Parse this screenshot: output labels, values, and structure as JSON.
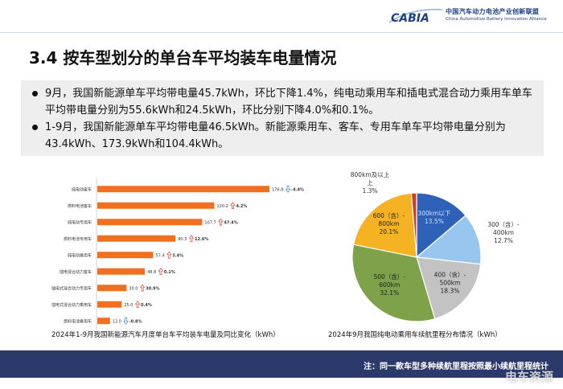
{
  "header": {
    "logo_text_cn": "中国汽车动力电池产业创新联盟",
    "logo_text_en": "China Automotive Battery Innovation Alliance",
    "logo_mark": "CABIA"
  },
  "title": "3.4 按车型划分的单台车平均装车电量情况",
  "bullets": [
    "9月，我国新能源单车平均带电量45.7kWh，环比下降1.4%，纯电动乘用车和插电式混合动力乘用车单车平均带电量分别为55.6kWh和24.5kWh，环比分别下降4.0%和0.1%。",
    "1-9月，我国新能源单车平均带电量46.5kWh。新能源乘用车、客车、专用车单车平均带电量分别为43.4kWh、173.9kWh和104.4kWh。"
  ],
  "colors": {
    "bar": "#f0701f",
    "up": "#e8432b",
    "down": "#2f8fd8",
    "footer": "#2b3a6b",
    "pie": [
      "#2e62b8",
      "#98c6ef",
      "#c3c3c3",
      "#7ea24a",
      "#f5b323",
      "#c9412a"
    ]
  },
  "chart_data": [
    {
      "type": "bar",
      "orientation": "horizontal",
      "caption": "2024年1-9月我国新能源汽车月度单台车平均装车电量及同比变化（kWh）",
      "categories": [
        "纯电动客车",
        "燃料电池客车",
        "纯电动专用车",
        "燃料电池专用车",
        "纯电动乘用车",
        "插电混合动力客车",
        "插电式混合动力专用车",
        "插电式混合动力乘用车",
        "燃料电池乘用车"
      ],
      "values": [
        176.8,
        120.2,
        107.7,
        80.3,
        57.4,
        48.8,
        30.0,
        25.0,
        13.0
      ],
      "value_labels": [
        "176.8",
        "120.2",
        "107.7",
        "80.3",
        "57.4",
        "48.8",
        "30.0",
        "25.0",
        "13.0"
      ],
      "change_labels": [
        "-4.4%",
        "4.2%",
        "47.4%",
        "12.6%",
        "3.4%",
        "0.1%",
        "30.9%",
        "0.4%",
        "-0.8%"
      ],
      "change_direction": [
        "down",
        "up",
        "up",
        "up",
        "up",
        "up",
        "up",
        "up",
        "down"
      ],
      "xlim": [
        0,
        176.8
      ]
    },
    {
      "type": "pie",
      "caption": "2024年9月我国纯电动乘用车续航里程分布情况（kWh）",
      "labels": [
        "300km以下",
        "300（含）-400km",
        "400（含）-500km",
        "500（含）-600km",
        "600（含）-800km",
        "800km及以上"
      ],
      "values": [
        13.5,
        12.7,
        18.3,
        32.1,
        20.1,
        1.3
      ],
      "value_labels": [
        "13.5%",
        "12.7%",
        "18.3%",
        "32.1%",
        "20.1%",
        "1.3%"
      ]
    }
  ],
  "footer": {
    "note": "注：同一款车型多种续航里程按照最小续航里程统计",
    "watermark": "电车资源"
  }
}
